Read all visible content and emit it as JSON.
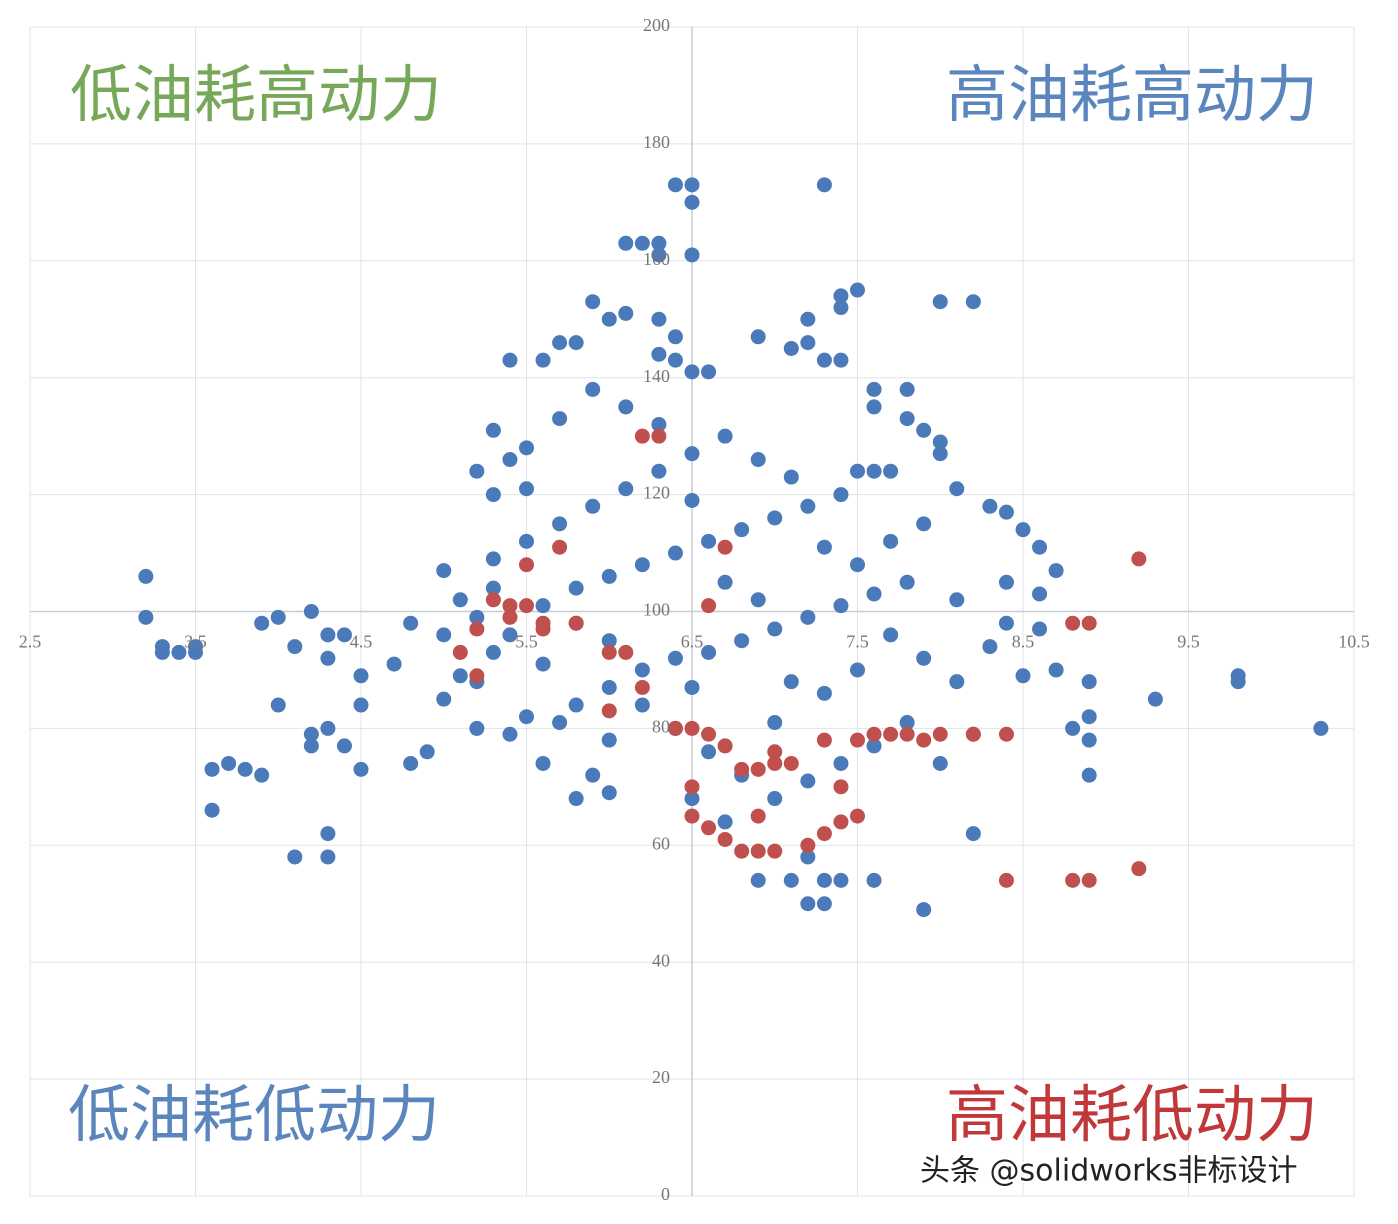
{
  "chart_data": {
    "type": "scatter",
    "xlim": [
      2.5,
      10.5
    ],
    "ylim": [
      0,
      200
    ],
    "xticks": [
      2.5,
      3.5,
      4.5,
      5.5,
      6.5,
      7.5,
      8.5,
      9.5,
      10.5
    ],
    "yticks": [
      0,
      20,
      40,
      60,
      80,
      100,
      120,
      140,
      160,
      180,
      200
    ],
    "x_axis_at": 100,
    "y_axis_at": 6.5,
    "grid": true,
    "series": [
      {
        "color": "#4a7ab9",
        "x": [
          3.2,
          3.2,
          3.3,
          3.3,
          3.4,
          3.5,
          3.5,
          3.6,
          3.7,
          3.8,
          3.9,
          3.6,
          3.9,
          4.0,
          4.2,
          4.3,
          4.1,
          4.4,
          4.3,
          4.7,
          4.5,
          4.5,
          4.3,
          4.4,
          4.5,
          4.0,
          4.2,
          4.2,
          4.1,
          4.3,
          4.3,
          4.8,
          4.9,
          4.8,
          5.0,
          5.3,
          5.3,
          5.2,
          5.3,
          5.1,
          5.4,
          5.4,
          5.5,
          5.9,
          6.0,
          6.1,
          6.3,
          5.7,
          5.8,
          5.6,
          6.3,
          6.4,
          6.5,
          6.6,
          6.4,
          6.9,
          7.1,
          7.2,
          6.2,
          6.3,
          6.3,
          6.1,
          6.4,
          6.5,
          6.5,
          7.3,
          6.5,
          7.4,
          7.5,
          7.4,
          7.2,
          7.3,
          7.4,
          7.6,
          7.6,
          7.8,
          7.8,
          8.0,
          8.2,
          7.9,
          8.0,
          8.0,
          7.5,
          7.6,
          7.7,
          8.1,
          8.3,
          8.4,
          8.5,
          8.6,
          8.7,
          8.4,
          8.6,
          8.6,
          8.4,
          8.3,
          8.5,
          8.7,
          8.9,
          8.9,
          8.8,
          8.9,
          9.3,
          9.8,
          9.8,
          10.3,
          8.9,
          8.2,
          7.9,
          7.6,
          7.4,
          7.3,
          7.2,
          7.3,
          7.1,
          7.2,
          6.9,
          6.5,
          6.7,
          5.6,
          5.8,
          6.0,
          5.9,
          5.4,
          5.2,
          5.0,
          5.1,
          5.2,
          5.5,
          5.8,
          6.0,
          6.2,
          6.4,
          6.6,
          6.8,
          7.0,
          7.2,
          7.4,
          7.6,
          7.8,
          5.6,
          5.8,
          6.0,
          6.2,
          6.4,
          6.6,
          6.8,
          7.0,
          7.2,
          7.4,
          5.5,
          5.7,
          5.9,
          6.1,
          6.3,
          6.5,
          6.7,
          6.9,
          7.1,
          7.3,
          7.5,
          7.7,
          7.9,
          8.1,
          7.8,
          7.6,
          7.4,
          7.2,
          7.0,
          6.8,
          6.6,
          6.4,
          6.2,
          6.0,
          5.8,
          5.6,
          5.4,
          5.2,
          5.0,
          5.3,
          5.5,
          5.7,
          5.9,
          6.1,
          6.3,
          6.5,
          6.7,
          6.9,
          7.1,
          7.3,
          7.5,
          7.7,
          7.9,
          8.1,
          8.2,
          8.0,
          7.0,
          6.5,
          6.0,
          5.7,
          5.3
        ],
        "values": [
          106,
          99,
          94,
          93,
          93,
          94,
          93,
          73,
          74,
          73,
          72,
          66,
          98,
          99,
          100,
          96,
          94,
          96,
          92,
          91,
          89,
          84,
          80,
          77,
          73,
          84,
          79,
          77,
          58,
          58,
          62,
          74,
          76,
          98,
          107,
          131,
          120,
          124,
          109,
          102,
          143,
          126,
          128,
          153,
          150,
          151,
          150,
          146,
          146,
          143,
          144,
          143,
          141,
          141,
          147,
          147,
          145,
          146,
          163,
          163,
          161,
          163,
          173,
          173,
          170,
          173,
          161,
          154,
          155,
          152,
          150,
          143,
          143,
          138,
          135,
          133,
          138,
          153,
          153,
          131,
          127,
          129,
          124,
          124,
          124,
          121,
          118,
          117,
          114,
          111,
          107,
          105,
          103,
          97,
          98,
          94,
          89,
          90,
          88,
          82,
          80,
          78,
          85,
          89,
          88,
          80,
          72,
          62,
          49,
          54,
          54,
          50,
          50,
          54,
          54,
          58,
          54,
          68,
          64,
          74,
          68,
          69,
          72,
          79,
          80,
          85,
          89,
          88,
          82,
          84,
          87,
          90,
          92,
          93,
          95,
          97,
          99,
          101,
          103,
          105,
          101,
          104,
          106,
          108,
          110,
          112,
          114,
          116,
          118,
          120,
          112,
          115,
          118,
          121,
          124,
          127,
          130,
          126,
          123,
          111,
          108,
          96,
          92,
          88,
          81,
          77,
          74,
          71,
          68,
          72,
          76,
          80,
          84,
          95,
          98,
          91,
          96,
          99,
          96,
          104,
          121,
          133,
          138,
          135,
          132,
          119,
          105,
          102,
          88,
          86,
          90,
          112,
          115,
          102,
          79,
          74,
          81,
          87,
          78,
          81,
          93
        ]
      },
      {
        "color": "#c0504d",
        "x": [
          5.3,
          5.4,
          5.5,
          5.6,
          5.6,
          5.4,
          5.2,
          5.7,
          5.5,
          6.0,
          6.2,
          6.0,
          6.1,
          5.1,
          5.8,
          6.7,
          6.6,
          6.2,
          6.3,
          5.2,
          6.5,
          6.6,
          6.4,
          6.7,
          6.8,
          6.9,
          7.0,
          7.1,
          7.3,
          7.5,
          7.6,
          7.8,
          8.0,
          8.2,
          8.4,
          7.7,
          7.9,
          6.5,
          6.6,
          6.7,
          6.8,
          6.9,
          7.0,
          7.2,
          7.3,
          7.4,
          7.5,
          6.5,
          6.9,
          8.4,
          8.8,
          8.9,
          9.2,
          9.2,
          8.8,
          8.9,
          7.4,
          7.0
        ],
        "values": [
          102,
          101,
          101,
          98,
          97,
          99,
          97,
          111,
          108,
          83,
          87,
          93,
          93,
          93,
          98,
          111,
          101,
          130,
          130,
          89,
          80,
          79,
          80,
          77,
          73,
          73,
          74,
          74,
          78,
          78,
          79,
          79,
          79,
          79,
          79,
          79,
          78,
          70,
          63,
          61,
          59,
          59,
          59,
          60,
          62,
          64,
          65,
          65,
          65,
          54,
          54,
          54,
          56,
          109,
          98,
          98,
          70,
          76
        ]
      }
    ],
    "annotations": [
      {
        "text": "低油耗高动力",
        "color": "#77a85a",
        "corner": "top-left"
      },
      {
        "text": "高油耗高动力",
        "color": "#5b86bd",
        "corner": "top-right"
      },
      {
        "text": "低油耗低动力",
        "color": "#5b86bd",
        "corner": "bottom-left"
      },
      {
        "text": "高油耗低动力",
        "color": "#c0383a",
        "corner": "bottom-right"
      }
    ],
    "watermark": "头条 @solidworks非标设计"
  }
}
